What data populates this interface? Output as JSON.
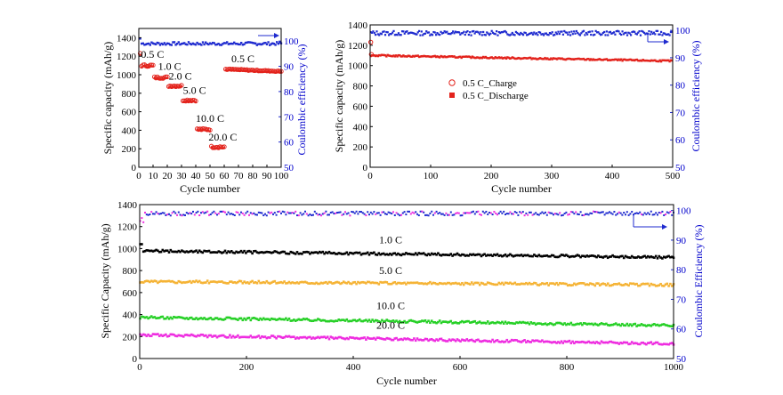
{
  "chart_data": [
    {
      "id": "a",
      "type": "scatter",
      "xlabel": "Cycle number",
      "ylabel": "Specific capacity (mAh/g)",
      "y2label": "Coulombic efficiency (%)",
      "xlim": [
        0,
        100
      ],
      "ylim": [
        0,
        1500
      ],
      "y2lim": [
        50,
        105
      ],
      "xticks": [
        0,
        10,
        20,
        30,
        40,
        50,
        60,
        70,
        80,
        90,
        100
      ],
      "yticks": [
        0,
        200,
        400,
        600,
        800,
        1000,
        1200,
        1400
      ],
      "y2ticks": [
        50,
        60,
        70,
        80,
        90,
        100
      ],
      "rate_segments": [
        {
          "label": "0.5 C",
          "x_start": 1,
          "x_end": 10,
          "capacity": 1100
        },
        {
          "label": "1.0 C",
          "x_start": 11,
          "x_end": 20,
          "capacity": 970
        },
        {
          "label": "2.0 C",
          "x_start": 21,
          "x_end": 30,
          "capacity": 880
        },
        {
          "label": "5.0 C",
          "x_start": 31,
          "x_end": 40,
          "capacity": 725
        },
        {
          "label": "10.0 C",
          "x_start": 41,
          "x_end": 50,
          "capacity": 410
        },
        {
          "label": "20.0 C",
          "x_start": 51,
          "x_end": 60,
          "capacity": 220
        },
        {
          "label": "0.5 C",
          "x_start": 61,
          "x_end": 100,
          "capacity": 1060
        }
      ],
      "efficiency_value": 99,
      "colors": {
        "capacity": "#e3231c",
        "efficiency": "#1f2bcf"
      }
    },
    {
      "id": "b",
      "type": "scatter",
      "xlabel": "Cycle number",
      "ylabel": "Specific capacity (mAh/g)",
      "y2label": "Coulombic efficiency (%)",
      "xlim": [
        0,
        500
      ],
      "ylim": [
        0,
        1400
      ],
      "y2lim": [
        50,
        102
      ],
      "xticks": [
        0,
        100,
        200,
        300,
        400,
        500
      ],
      "yticks": [
        0,
        200,
        400,
        600,
        800,
        1000,
        1200,
        1400
      ],
      "y2ticks": [
        50,
        60,
        70,
        80,
        90,
        100
      ],
      "series": [
        {
          "name": "0.5 C_Charge",
          "marker": "open-circle",
          "start": 1120,
          "end": 1050
        },
        {
          "name": "0.5 C_Discharge",
          "marker": "filled-square",
          "start": 1100,
          "end": 1045
        }
      ],
      "efficiency_value": 99,
      "colors": {
        "capacity": "#e3231c",
        "efficiency": "#1f2bcf"
      }
    },
    {
      "id": "c",
      "type": "scatter",
      "xlabel": "Cycle number",
      "ylabel": "Specific Capacity (mAh/g)",
      "y2label": "Coulombic Efficiency (%)",
      "xlim": [
        0,
        1000
      ],
      "ylim": [
        0,
        1400
      ],
      "y2lim": [
        50,
        102
      ],
      "xticks": [
        0,
        200,
        400,
        600,
        800,
        1000
      ],
      "yticks": [
        0,
        200,
        400,
        600,
        800,
        1000,
        1200,
        1400
      ],
      "y2ticks": [
        50,
        60,
        70,
        80,
        90,
        100
      ],
      "series": [
        {
          "name": "1.0 C",
          "color": "#000000",
          "start": 980,
          "end": 920
        },
        {
          "name": "5.0  C",
          "color": "#f5b335",
          "start": 700,
          "end": 670
        },
        {
          "name": "10.0 C",
          "color": "#27d027",
          "start": 375,
          "end": 300
        },
        {
          "name": "20.0 C",
          "color": "#ee2de0",
          "start": 215,
          "end": 135
        }
      ],
      "efficiency_value": 99,
      "colors": {
        "efficiency": "#1f2bcf"
      }
    }
  ]
}
